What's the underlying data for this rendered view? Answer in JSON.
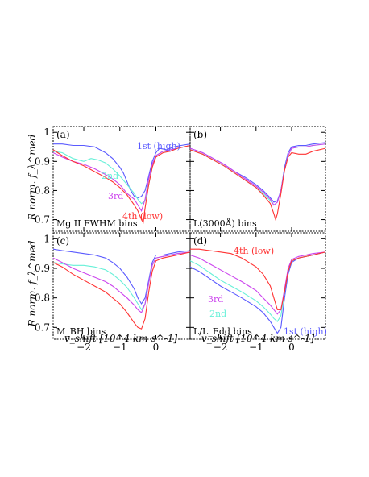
{
  "figure": {
    "ylabel": "R norm. f_λ^med",
    "xlabel": "v_shift [10^4 km s^-1]",
    "x_ticks": [
      "−2",
      "−1",
      "0"
    ],
    "y_ticks": [
      "1",
      "0.9",
      "0.8",
      "0.7"
    ],
    "series_colors": {
      "1st": "#5a5aff",
      "2nd": "#66f0d8",
      "3rd": "#cc44ee",
      "4th": "#ff3333"
    }
  },
  "chart_data": [
    {
      "type": "line",
      "panel_label": "(a)",
      "bins_label": "Mg II FWHM bins",
      "xlim": [
        -2.85,
        0.95
      ],
      "ylim": [
        0.66,
        1.02
      ],
      "annotations": [
        {
          "series": "1st",
          "text": "1st (high)"
        },
        {
          "series": "2nd",
          "text": "2nd"
        },
        {
          "series": "3rd",
          "text": "3rd"
        },
        {
          "series": "4th",
          "text": "4th (low)"
        }
      ],
      "series": [
        {
          "name": "1st",
          "x": [
            -2.85,
            -2.6,
            -2.3,
            -2.0,
            -1.7,
            -1.4,
            -1.2,
            -1.0,
            -0.9,
            -0.8,
            -0.7,
            -0.6,
            -0.5,
            -0.4,
            -0.3,
            -0.2,
            -0.1,
            0.0,
            0.1,
            0.3,
            0.5,
            0.7,
            0.95
          ],
          "y": [
            0.96,
            0.96,
            0.955,
            0.955,
            0.95,
            0.93,
            0.91,
            0.88,
            0.86,
            0.83,
            0.8,
            0.78,
            0.775,
            0.78,
            0.8,
            0.85,
            0.9,
            0.93,
            0.945,
            0.94,
            0.95,
            0.955,
            0.96
          ]
        },
        {
          "name": "2nd",
          "x": [
            -2.85,
            -2.6,
            -2.3,
            -2.0,
            -1.8,
            -1.6,
            -1.4,
            -1.2,
            -1.0,
            -0.8,
            -0.6,
            -0.5,
            -0.4,
            -0.3,
            -0.2,
            -0.1,
            0.0,
            0.2,
            0.4,
            0.6,
            0.95
          ],
          "y": [
            0.935,
            0.93,
            0.91,
            0.9,
            0.91,
            0.905,
            0.895,
            0.875,
            0.85,
            0.82,
            0.79,
            0.77,
            0.755,
            0.765,
            0.82,
            0.88,
            0.92,
            0.935,
            0.935,
            0.945,
            0.955
          ]
        },
        {
          "name": "3rd",
          "x": [
            -2.85,
            -2.6,
            -2.3,
            -2.0,
            -1.7,
            -1.4,
            -1.2,
            -1.0,
            -0.8,
            -0.6,
            -0.5,
            -0.4,
            -0.3,
            -0.2,
            -0.1,
            0.0,
            0.2,
            0.4,
            0.6,
            0.95
          ],
          "y": [
            0.93,
            0.915,
            0.9,
            0.89,
            0.875,
            0.855,
            0.84,
            0.82,
            0.79,
            0.77,
            0.75,
            0.73,
            0.77,
            0.84,
            0.89,
            0.92,
            0.935,
            0.94,
            0.945,
            0.955
          ]
        },
        {
          "name": "4th",
          "x": [
            -2.85,
            -2.6,
            -2.3,
            -2.0,
            -1.7,
            -1.4,
            -1.2,
            -1.0,
            -0.8,
            -0.6,
            -0.5,
            -0.4,
            -0.35,
            -0.3,
            -0.2,
            -0.1,
            0.0,
            0.2,
            0.4,
            0.6,
            0.95
          ],
          "y": [
            0.94,
            0.92,
            0.9,
            0.885,
            0.865,
            0.845,
            0.83,
            0.81,
            0.785,
            0.75,
            0.73,
            0.7,
            0.69,
            0.74,
            0.82,
            0.88,
            0.915,
            0.93,
            0.935,
            0.945,
            0.955
          ]
        }
      ]
    },
    {
      "type": "line",
      "panel_label": "(b)",
      "bins_label": "L(3000Å) bins",
      "xlim": [
        -2.85,
        0.95
      ],
      "ylim": [
        0.66,
        1.02
      ],
      "annotations": [],
      "series": [
        {
          "name": "1st",
          "x": [
            -2.85,
            -2.5,
            -2.2,
            -1.9,
            -1.6,
            -1.3,
            -1.0,
            -0.8,
            -0.6,
            -0.5,
            -0.4,
            -0.3,
            -0.2,
            -0.1,
            0.0,
            0.2,
            0.4,
            0.6,
            0.95
          ],
          "y": [
            0.945,
            0.93,
            0.91,
            0.89,
            0.865,
            0.845,
            0.82,
            0.8,
            0.775,
            0.76,
            0.765,
            0.8,
            0.88,
            0.93,
            0.95,
            0.955,
            0.955,
            0.96,
            0.965
          ]
        },
        {
          "name": "2nd",
          "x": [
            -2.85,
            -2.5,
            -2.2,
            -1.9,
            -1.6,
            -1.3,
            -1.0,
            -0.8,
            -0.6,
            -0.5,
            -0.4,
            -0.3,
            -0.2,
            -0.1,
            0.0,
            0.2,
            0.4,
            0.6,
            0.95
          ],
          "y": [
            0.94,
            0.925,
            0.905,
            0.885,
            0.86,
            0.835,
            0.81,
            0.79,
            0.765,
            0.75,
            0.76,
            0.8,
            0.87,
            0.92,
            0.945,
            0.95,
            0.95,
            0.955,
            0.96
          ]
        },
        {
          "name": "3rd",
          "x": [
            -2.85,
            -2.5,
            -2.2,
            -1.9,
            -1.6,
            -1.3,
            -1.0,
            -0.8,
            -0.6,
            -0.5,
            -0.4,
            -0.3,
            -0.2,
            -0.1,
            0.0,
            0.2,
            0.4,
            0.6,
            0.95
          ],
          "y": [
            0.945,
            0.93,
            0.91,
            0.89,
            0.865,
            0.84,
            0.815,
            0.795,
            0.77,
            0.75,
            0.76,
            0.8,
            0.87,
            0.92,
            0.945,
            0.95,
            0.95,
            0.955,
            0.96
          ]
        },
        {
          "name": "4th",
          "x": [
            -2.85,
            -2.5,
            -2.2,
            -1.9,
            -1.6,
            -1.3,
            -1.0,
            -0.8,
            -0.6,
            -0.5,
            -0.45,
            -0.4,
            -0.3,
            -0.2,
            -0.1,
            0.0,
            0.2,
            0.4,
            0.6,
            0.95
          ],
          "y": [
            0.94,
            0.925,
            0.905,
            0.885,
            0.86,
            0.835,
            0.81,
            0.785,
            0.755,
            0.72,
            0.7,
            0.72,
            0.79,
            0.87,
            0.915,
            0.93,
            0.925,
            0.925,
            0.935,
            0.945
          ]
        }
      ]
    },
    {
      "type": "line",
      "panel_label": "(c)",
      "bins_label": "M_BH bins",
      "xlim": [
        -2.85,
        0.95
      ],
      "ylim": [
        0.66,
        1.02
      ],
      "annotations": [],
      "series": [
        {
          "name": "1st",
          "x": [
            -2.85,
            -2.6,
            -2.3,
            -2.0,
            -1.7,
            -1.4,
            -1.2,
            -1.0,
            -0.8,
            -0.6,
            -0.5,
            -0.4,
            -0.3,
            -0.2,
            -0.1,
            0.0,
            0.2,
            0.4,
            0.6,
            0.95
          ],
          "y": [
            0.965,
            0.96,
            0.955,
            0.95,
            0.945,
            0.935,
            0.92,
            0.9,
            0.87,
            0.83,
            0.8,
            0.78,
            0.8,
            0.86,
            0.92,
            0.945,
            0.945,
            0.95,
            0.955,
            0.96
          ]
        },
        {
          "name": "2nd",
          "x": [
            -2.85,
            -2.6,
            -2.3,
            -2.0,
            -1.7,
            -1.4,
            -1.2,
            -1.0,
            -0.8,
            -0.6,
            -0.5,
            -0.4,
            -0.3,
            -0.2,
            -0.1,
            0.0,
            0.2,
            0.4,
            0.6,
            0.95
          ],
          "y": [
            0.92,
            0.915,
            0.91,
            0.91,
            0.905,
            0.895,
            0.88,
            0.86,
            0.835,
            0.8,
            0.78,
            0.76,
            0.78,
            0.85,
            0.91,
            0.935,
            0.94,
            0.945,
            0.95,
            0.955
          ]
        },
        {
          "name": "3rd",
          "x": [
            -2.85,
            -2.6,
            -2.3,
            -2.0,
            -1.7,
            -1.4,
            -1.2,
            -1.0,
            -0.8,
            -0.6,
            -0.5,
            -0.4,
            -0.3,
            -0.2,
            -0.1,
            0.0,
            0.2,
            0.4,
            0.6,
            0.95
          ],
          "y": [
            0.935,
            0.92,
            0.9,
            0.885,
            0.87,
            0.855,
            0.84,
            0.82,
            0.8,
            0.775,
            0.76,
            0.75,
            0.78,
            0.85,
            0.91,
            0.935,
            0.94,
            0.945,
            0.95,
            0.955
          ]
        },
        {
          "name": "4th",
          "x": [
            -2.85,
            -2.6,
            -2.3,
            -2.0,
            -1.7,
            -1.4,
            -1.2,
            -1.0,
            -0.8,
            -0.6,
            -0.5,
            -0.4,
            -0.3,
            -0.2,
            -0.1,
            0.0,
            0.2,
            0.4,
            0.6,
            0.95
          ],
          "y": [
            0.92,
            0.905,
            0.88,
            0.86,
            0.84,
            0.82,
            0.8,
            0.78,
            0.75,
            0.715,
            0.7,
            0.695,
            0.73,
            0.82,
            0.89,
            0.925,
            0.935,
            0.94,
            0.945,
            0.955
          ]
        }
      ]
    },
    {
      "type": "line",
      "panel_label": "(d)",
      "bins_label": "L/L_Edd bins",
      "xlim": [
        -2.85,
        0.95
      ],
      "ylim": [
        0.66,
        1.02
      ],
      "annotations": [
        {
          "series": "4th",
          "text": "4th (low)"
        },
        {
          "series": "3rd",
          "text": "3rd"
        },
        {
          "series": "2nd",
          "text": "2nd"
        },
        {
          "series": "1st",
          "text": "1st (high)"
        }
      ],
      "series": [
        {
          "name": "1st",
          "x": [
            -2.85,
            -2.6,
            -2.3,
            -2.0,
            -1.7,
            -1.4,
            -1.2,
            -1.0,
            -0.8,
            -0.6,
            -0.5,
            -0.4,
            -0.3,
            -0.2,
            -0.1,
            0.0,
            0.2,
            0.4,
            0.6,
            0.95
          ],
          "y": [
            0.905,
            0.89,
            0.865,
            0.84,
            0.82,
            0.8,
            0.785,
            0.77,
            0.75,
            0.72,
            0.7,
            0.68,
            0.7,
            0.8,
            0.88,
            0.92,
            0.935,
            0.94,
            0.945,
            0.955
          ]
        },
        {
          "name": "2nd",
          "x": [
            -2.85,
            -2.6,
            -2.3,
            -2.0,
            -1.7,
            -1.4,
            -1.2,
            -1.0,
            -0.8,
            -0.6,
            -0.5,
            -0.4,
            -0.3,
            -0.2,
            -0.1,
            0.0,
            0.2,
            0.4,
            0.6,
            0.95
          ],
          "y": [
            0.925,
            0.91,
            0.885,
            0.86,
            0.84,
            0.82,
            0.805,
            0.79,
            0.77,
            0.745,
            0.73,
            0.72,
            0.74,
            0.82,
            0.89,
            0.925,
            0.935,
            0.94,
            0.945,
            0.955
          ]
        },
        {
          "name": "3rd",
          "x": [
            -2.85,
            -2.6,
            -2.3,
            -2.0,
            -1.7,
            -1.4,
            -1.2,
            -1.0,
            -0.8,
            -0.6,
            -0.5,
            -0.4,
            -0.3,
            -0.2,
            -0.1,
            0.0,
            0.2,
            0.4,
            0.6,
            0.95
          ],
          "y": [
            0.945,
            0.935,
            0.915,
            0.895,
            0.875,
            0.855,
            0.84,
            0.825,
            0.8,
            0.775,
            0.76,
            0.745,
            0.76,
            0.83,
            0.9,
            0.93,
            0.94,
            0.945,
            0.95,
            0.955
          ]
        },
        {
          "name": "4th",
          "x": [
            -2.85,
            -2.6,
            -2.3,
            -2.0,
            -1.7,
            -1.4,
            -1.2,
            -1.0,
            -0.8,
            -0.6,
            -0.5,
            -0.4,
            -0.3,
            -0.2,
            -0.1,
            0.0,
            0.2,
            0.4,
            0.6,
            0.95
          ],
          "y": [
            0.965,
            0.965,
            0.96,
            0.955,
            0.95,
            0.935,
            0.92,
            0.905,
            0.88,
            0.84,
            0.8,
            0.76,
            0.76,
            0.82,
            0.89,
            0.925,
            0.935,
            0.94,
            0.945,
            0.955
          ]
        }
      ]
    }
  ]
}
